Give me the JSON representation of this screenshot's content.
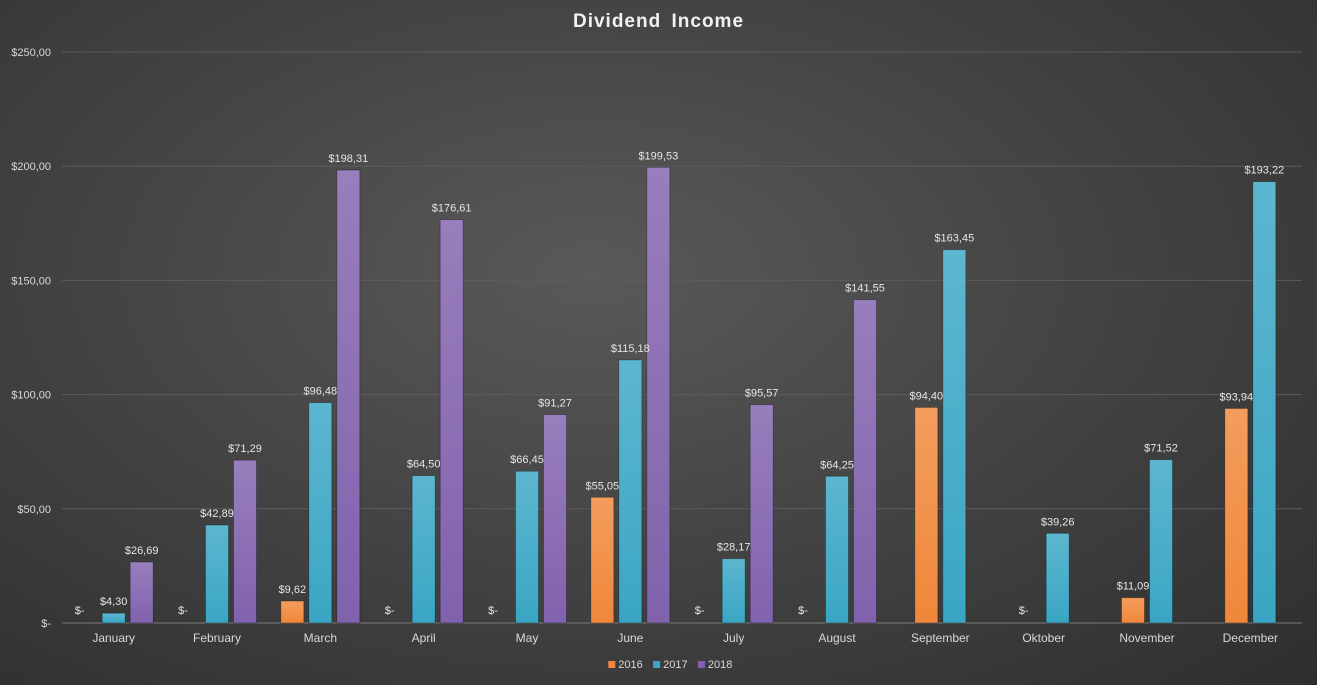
{
  "chart_data": {
    "type": "bar",
    "title": "Dividend Income",
    "xlabel": "",
    "ylabel": "",
    "ylim": [
      0,
      250
    ],
    "grid": true,
    "legend_position": "bottom",
    "y_ticks": [
      "$-",
      "$50,00",
      "$100,00",
      "$150,00",
      "$200,00",
      "$250,00"
    ],
    "categories": [
      "January",
      "February",
      "March",
      "April",
      "May",
      "June",
      "July",
      "August",
      "September",
      "Oktober",
      "November",
      "December"
    ],
    "series": [
      {
        "name": "2016",
        "color": "#f0873a",
        "values": [
          0,
          0,
          9.62,
          0,
          0,
          55.05,
          0,
          0,
          94.4,
          0,
          11.09,
          93.94
        ],
        "labels": [
          "$-",
          "$-",
          "$9,62",
          "$-",
          "$-",
          "$55,05",
          "$-",
          "$-",
          "$94,40",
          "$-",
          "$11,09",
          "$93,94"
        ]
      },
      {
        "name": "2017",
        "color": "#3aa6c4",
        "values": [
          4.3,
          42.89,
          96.48,
          64.5,
          66.45,
          115.18,
          28.17,
          64.25,
          163.45,
          39.26,
          71.52,
          193.22
        ],
        "labels": [
          "$4,30",
          "$42,89",
          "$96,48",
          "$64,50",
          "$66,45",
          "$115,18",
          "$28,17",
          "$64,25",
          "$163,45",
          "$39,26",
          "$71,52",
          "$193,22"
        ]
      },
      {
        "name": "2018",
        "color": "#8162ad",
        "values": [
          26.69,
          71.29,
          198.31,
          176.61,
          91.27,
          199.53,
          95.57,
          141.55,
          null,
          null,
          null,
          null
        ],
        "labels": [
          "$26,69",
          "$71,29",
          "$198,31",
          "$176,61",
          "$91,27",
          "$199,53",
          "$95,57",
          "$141,55",
          null,
          null,
          null,
          null
        ]
      }
    ]
  }
}
